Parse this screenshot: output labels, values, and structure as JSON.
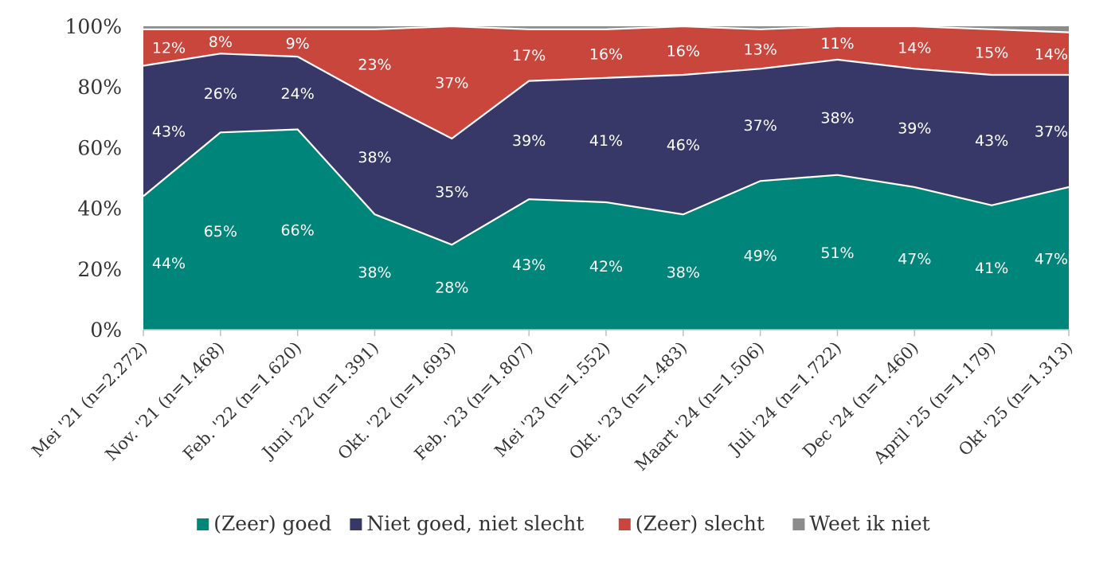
{
  "chart_data": {
    "type": "area",
    "stacked": true,
    "categories": [
      "Mei '21 (n=2.272)",
      "Nov. '21 (n=1.468)",
      "Feb. '22 (n=1.620)",
      "Juni '22 (n=1.391)",
      "Okt. '22 (n=1.693)",
      "Feb. '23 (n=1.807)",
      "Mei '23 (n=1.552)",
      "Okt. '23 (n=1.483)",
      "Maart '24 (n=1.506)",
      "Juli '24 (n=1.722)",
      "Dec '24 (n=1.460)",
      "April '25 (n=1.179)",
      "Okt '25 (n=1.313)"
    ],
    "series": [
      {
        "name": "(Zeer) goed",
        "color": "#00857a",
        "values": [
          44,
          65,
          66,
          38,
          28,
          43,
          42,
          38,
          49,
          51,
          47,
          41,
          47
        ],
        "labels": [
          "44%",
          "65%",
          "66%",
          "38%",
          "28%",
          "43%",
          "42%",
          "38%",
          "49%",
          "51%",
          "47%",
          "41%",
          "47%"
        ]
      },
      {
        "name": "Niet goed, niet slecht",
        "color": "#373867",
        "values": [
          43,
          26,
          24,
          38,
          35,
          39,
          41,
          46,
          37,
          38,
          39,
          43,
          37
        ],
        "labels": [
          "43%",
          "26%",
          "24%",
          "38%",
          "35%",
          "39%",
          "41%",
          "46%",
          "37%",
          "38%",
          "39%",
          "43%",
          "37%"
        ]
      },
      {
        "name": "(Zeer) slecht",
        "color": "#c9463d",
        "values": [
          12,
          8,
          9,
          23,
          37,
          17,
          16,
          16,
          13,
          11,
          14,
          15,
          14
        ],
        "labels": [
          "12%",
          "8%",
          "9%",
          "23%",
          "37%",
          "17%",
          "16%",
          "16%",
          "13%",
          "11%",
          "14%",
          "15%",
          "14%"
        ]
      },
      {
        "name": "Weet ik niet",
        "color": "#8c8c8c",
        "values": [
          1,
          1,
          1,
          1,
          0,
          1,
          1,
          0,
          1,
          0,
          0,
          1,
          2
        ],
        "labels": []
      }
    ],
    "y_ticks": [
      "0%",
      "20%",
      "40%",
      "60%",
      "80%",
      "100%"
    ],
    "ylim": [
      0,
      100
    ],
    "legend_position": "bottom",
    "title": "",
    "xlabel": "",
    "ylabel": ""
  }
}
